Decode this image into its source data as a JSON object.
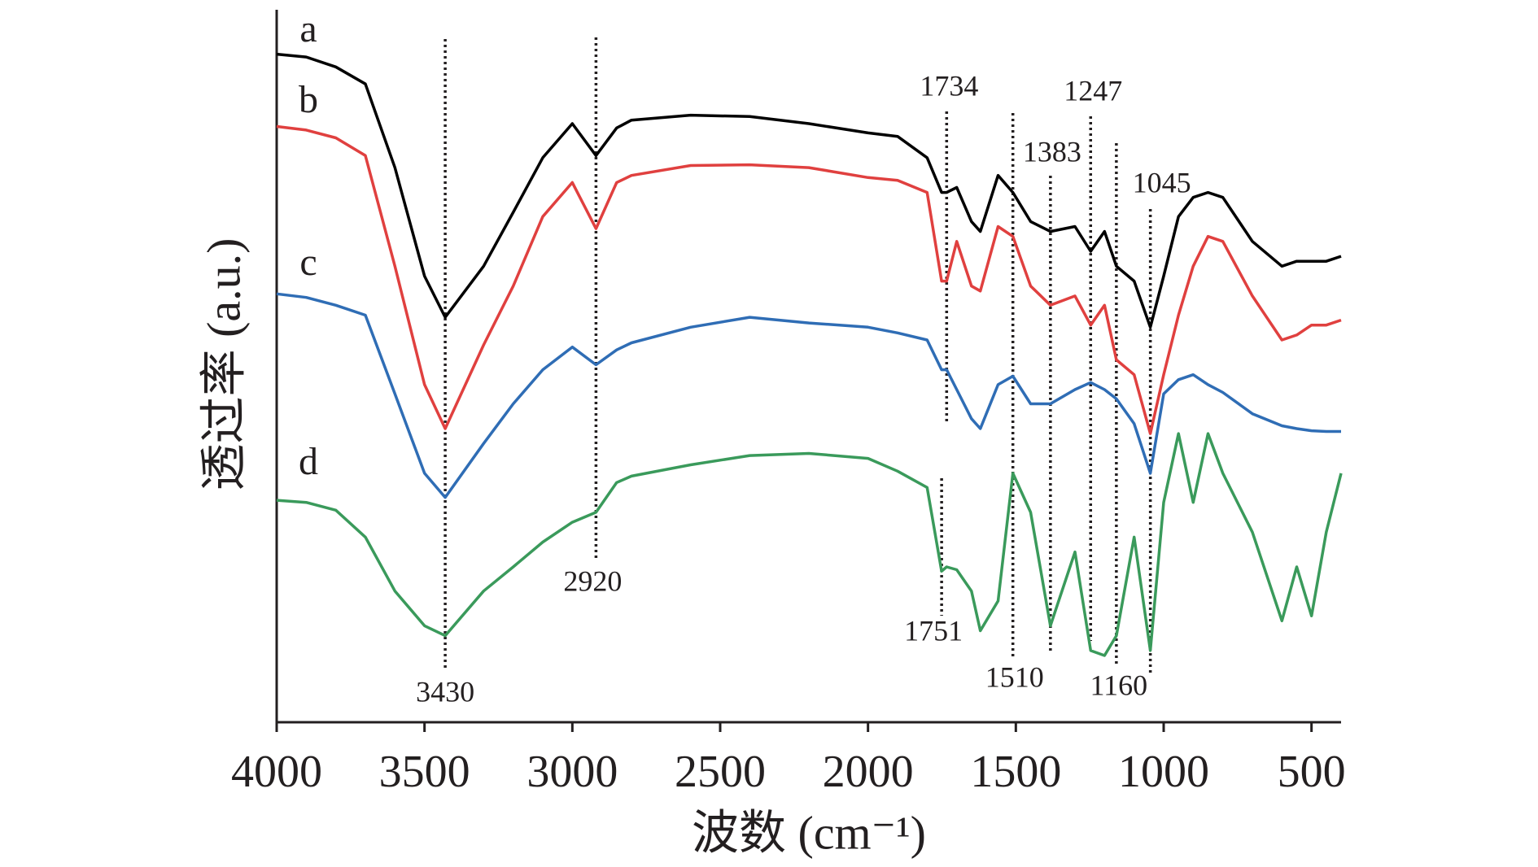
{
  "chart_data": {
    "type": "line",
    "xlabel": "波数 (cm⁻¹)",
    "ylabel": "透过率 (a.u.)",
    "x": [
      4000,
      3900,
      3800,
      3700,
      3600,
      3500,
      3430,
      3300,
      3200,
      3100,
      3000,
      2920,
      2850,
      2800,
      2600,
      2400,
      2200,
      2000,
      1900,
      1800,
      1751,
      1734,
      1700,
      1650,
      1620,
      1560,
      1510,
      1450,
      1383,
      1300,
      1247,
      1200,
      1160,
      1100,
      1045,
      1000,
      950,
      900,
      850,
      800,
      700,
      600,
      550,
      500,
      450,
      400
    ],
    "series": [
      {
        "name": "a",
        "color": "#000000",
        "values": [
          94.2,
          93.8,
          92.4,
          90,
          78.2,
          62.9,
          57.1,
          64.3,
          71.9,
          79.6,
          84.4,
          79.9,
          83.8,
          84.9,
          85.6,
          85.4,
          84.4,
          83.1,
          82.6,
          79.6,
          74.7,
          74.7,
          75.4,
          70.6,
          69.2,
          77.1,
          74.7,
          70.6,
          69.2,
          69.9,
          66.4,
          69.2,
          64.3,
          62.2,
          55.7,
          62.9,
          71.3,
          74,
          74.7,
          74,
          67.8,
          64.3,
          65,
          65,
          65,
          65.7
        ]
      },
      {
        "name": "b",
        "color": "#e0403f",
        "values": [
          84,
          83.5,
          82.4,
          79.9,
          64.3,
          47.6,
          41.4,
          53.2,
          61.5,
          71.3,
          76.1,
          69.6,
          76.1,
          77.1,
          78.5,
          78.6,
          78.2,
          76.8,
          76.4,
          74.7,
          62.2,
          62.2,
          67.8,
          61.5,
          60.8,
          69.9,
          68.5,
          61.5,
          58.8,
          60.1,
          56,
          58.8,
          51.1,
          49,
          40.7,
          49,
          57.4,
          64.3,
          68.5,
          67.8,
          60.1,
          53.9,
          54.6,
          56,
          56,
          56.7
        ]
      },
      {
        "name": "c",
        "color": "#2f6db5",
        "values": [
          60.4,
          59.9,
          58.8,
          57.4,
          46.3,
          35.1,
          31.7,
          39.3,
          44.9,
          49.7,
          52.9,
          50.4,
          52.5,
          53.5,
          55.7,
          57.1,
          56.3,
          55.7,
          54.9,
          53.9,
          49.7,
          49.7,
          46.9,
          42.8,
          41.4,
          47.6,
          48.8,
          44.9,
          44.9,
          46.9,
          47.9,
          46.9,
          45.6,
          42.1,
          35.1,
          46.3,
          48.3,
          49,
          47.6,
          46.5,
          43.5,
          41.8,
          41.4,
          41.1,
          41,
          41
        ]
      },
      {
        "name": "d",
        "color": "#3a9a5b",
        "values": [
          31.3,
          31,
          29.9,
          26.1,
          18.5,
          13.6,
          12.2,
          18.5,
          21.9,
          25.4,
          28.2,
          29.6,
          33.8,
          34.7,
          36.3,
          37.6,
          37.9,
          37.2,
          35.4,
          33.1,
          21.3,
          21.9,
          21.5,
          18.5,
          12.9,
          17.1,
          35.1,
          29.6,
          13.6,
          24,
          10.1,
          9.4,
          12.2,
          26.1,
          10.1,
          31,
          40.7,
          31,
          40.7,
          35.1,
          26.8,
          14.3,
          21.9,
          15,
          26.8,
          35.1
        ]
      }
    ],
    "peaks": [
      3430,
      2920,
      1734,
      1510,
      1383,
      1247,
      1160,
      1045,
      1751
    ],
    "xlim": [
      4000,
      400
    ],
    "ylim": [
      0,
      100
    ],
    "xticks": [
      4000,
      3500,
      3000,
      2500,
      2000,
      1500,
      1000,
      500
    ]
  }
}
